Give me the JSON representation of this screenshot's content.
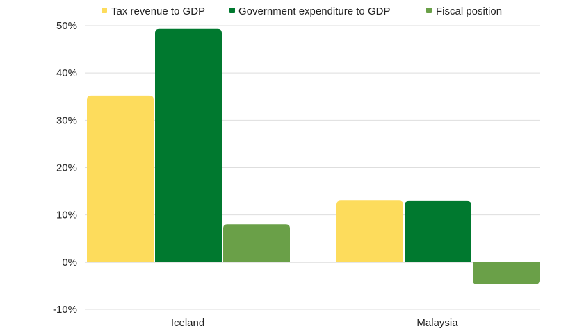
{
  "chart_data": {
    "type": "bar",
    "title": "",
    "xlabel": "",
    "ylabel": "",
    "categories": [
      "Iceland",
      "Malaysia"
    ],
    "series": [
      {
        "name": "Tax revenue to GDP",
        "color": "#FDDC5C",
        "values": [
          35.2,
          13.0
        ]
      },
      {
        "name": "Government expenditure to GDP",
        "color": "#00792F",
        "values": [
          49.3,
          12.9
        ]
      },
      {
        "name": "Fiscal position",
        "color": "#6AA048",
        "values": [
          8.0,
          -4.7
        ]
      }
    ],
    "ylim": [
      -10,
      50
    ],
    "yticks": [
      -10,
      0,
      10,
      20,
      30,
      40,
      50
    ],
    "ytick_labels": [
      "-10%",
      "0%",
      "10%",
      "20%",
      "30%",
      "40%",
      "50%"
    ],
    "grid": true,
    "legend_position": "top"
  }
}
